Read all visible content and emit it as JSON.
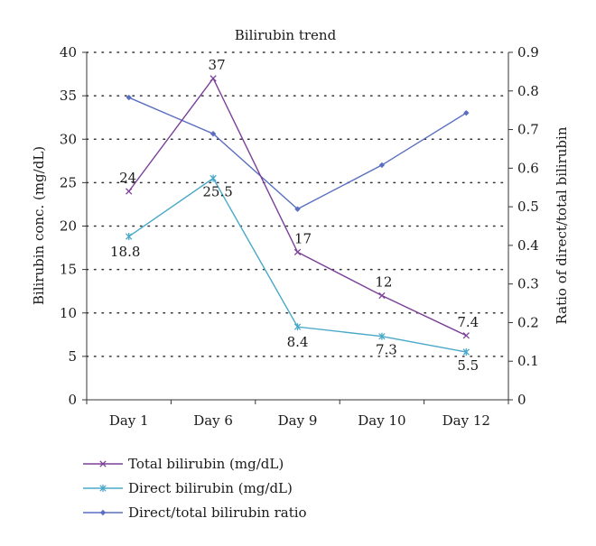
{
  "chart_data": {
    "type": "line",
    "title": "Bilirubin trend",
    "categories": [
      "Day 1",
      "Day 6",
      "Day 9",
      "Day 10",
      "Day 12"
    ],
    "ylabel": "Bilirubin conc. (mg/dL)",
    "ylabel_right": "Ratio of direct/total bilirubin",
    "ylim": [
      0,
      40
    ],
    "yticks": [
      "0",
      "5",
      "10",
      "15",
      "20",
      "25",
      "30",
      "35",
      "40"
    ],
    "ylim_right": [
      0,
      0.9
    ],
    "yticks_right": [
      "0",
      "0.1",
      "0.2",
      "0.3",
      "0.4",
      "0.5",
      "0.6",
      "0.7",
      "0.8",
      "0.9"
    ],
    "grid": "horizontal dotted",
    "legend_position": "bottom",
    "series": [
      {
        "name": "Total bilirubin (mg/dL)",
        "axis": "left",
        "marker": "x",
        "color": "#7b3f98",
        "values": [
          24,
          37,
          17,
          12,
          7.4
        ],
        "labels": [
          "24",
          "37",
          "17",
          "12",
          "7.4"
        ]
      },
      {
        "name": "Direct bilirubin (mg/dL)",
        "axis": "left",
        "marker": "asterisk",
        "color": "#4aa8c8",
        "values": [
          18.8,
          25.5,
          8.4,
          7.3,
          5.5
        ],
        "labels": [
          "18.8",
          "25.5",
          "8.4",
          "7.3",
          "5.5"
        ]
      },
      {
        "name": "Direct/total bilirubin ratio",
        "axis": "right",
        "marker": "diamond",
        "color": "#5a6fc0",
        "values": [
          0.783,
          0.689,
          0.494,
          0.608,
          0.743
        ],
        "labels": []
      }
    ]
  }
}
